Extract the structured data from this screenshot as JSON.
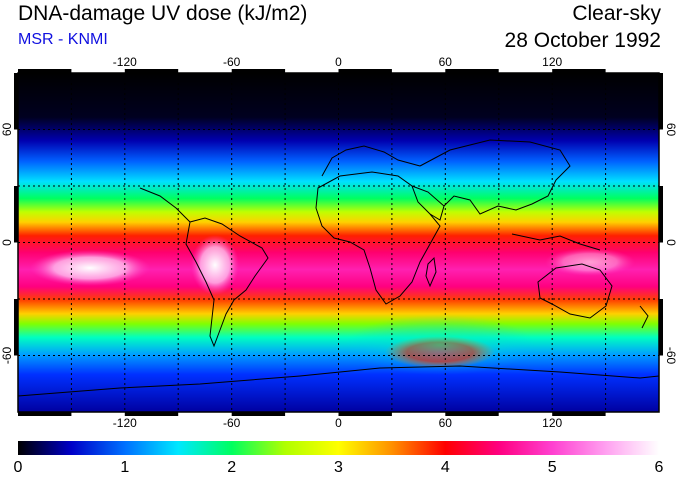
{
  "header": {
    "title": "DNA-damage UV dose (kJ/m2)",
    "source": "MSR - KNMI",
    "condition": "Clear-sky",
    "date": "28 October 1992"
  },
  "colors": {
    "source_text": "#1010e0",
    "outline": "#000000",
    "grid": "#000000"
  },
  "map": {
    "longitude_ticks": [
      "-120",
      "-60",
      "0",
      "60",
      "120"
    ],
    "latitude_ticks": [
      "60",
      "0",
      "-60"
    ]
  },
  "colorbar": {
    "labels": [
      "0",
      "1",
      "2",
      "3",
      "4",
      "5",
      "6"
    ],
    "stops": [
      "#000000",
      "#0000c8",
      "#0070ff",
      "#00e8ff",
      "#00ff60",
      "#b0ff00",
      "#ffff00",
      "#ff9000",
      "#ff0000",
      "#ff0080",
      "#ff40d0",
      "#ffa0f0",
      "#ffffff"
    ]
  }
}
